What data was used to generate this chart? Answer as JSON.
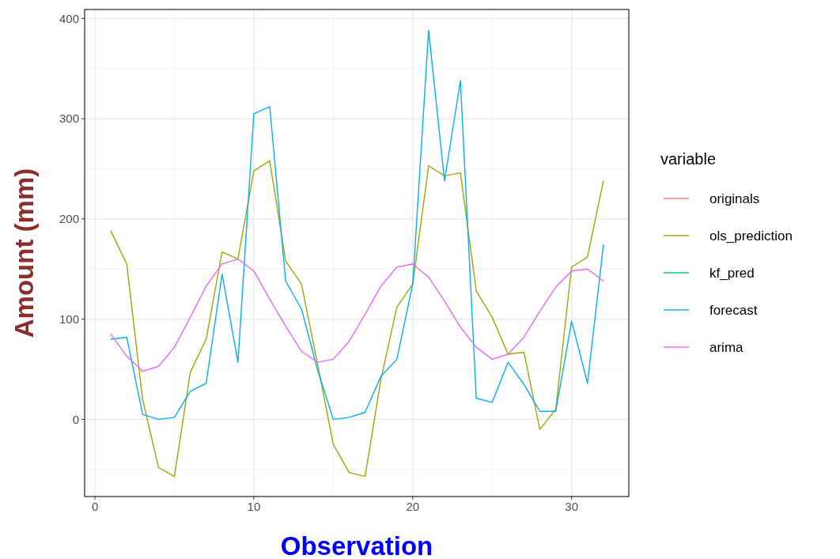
{
  "chart_data": {
    "type": "line",
    "xlabel": "Observation",
    "ylabel": "Amount (mm)",
    "legend_title": "variable",
    "legend": "right",
    "grid": true,
    "x": [
      1,
      2,
      3,
      4,
      5,
      6,
      7,
      8,
      9,
      10,
      11,
      12,
      13,
      14,
      15,
      16,
      17,
      18,
      19,
      20,
      21,
      22,
      23,
      24,
      25,
      26,
      27,
      28,
      29,
      30,
      31,
      32
    ],
    "xlim": [
      -0.65,
      33.6
    ],
    "xticks": [
      0,
      10,
      20,
      30
    ],
    "ylim": [
      -77,
      409
    ],
    "yticks": [
      0,
      100,
      200,
      300,
      400
    ],
    "series": [
      {
        "name": "originals",
        "color": "#f8766d",
        "values": [
          null,
          null,
          null,
          null,
          null,
          null,
          null,
          null,
          null,
          null,
          null,
          null,
          null,
          null,
          null,
          null,
          null,
          null,
          null,
          null,
          null,
          null,
          null,
          null,
          null,
          null,
          null,
          null,
          null,
          null,
          null,
          null
        ]
      },
      {
        "name": "ols_prediction",
        "color": "#a3a500",
        "values": [
          188,
          155,
          20,
          -48,
          -57,
          47,
          80,
          167,
          160,
          248,
          258,
          158,
          135,
          56,
          -25,
          -53,
          -57,
          40,
          112,
          135,
          253,
          243,
          246,
          128,
          102,
          65,
          67,
          -10,
          10,
          152,
          162,
          238
        ]
      },
      {
        "name": "kf_pred",
        "color": "#00bf7d",
        "values": [
          null,
          null,
          null,
          null,
          null,
          null,
          null,
          null,
          null,
          null,
          null,
          null,
          null,
          null,
          null,
          null,
          null,
          null,
          null,
          null,
          null,
          null,
          null,
          null,
          null,
          null,
          null,
          null,
          null,
          null,
          null,
          null
        ]
      },
      {
        "name": "forecast",
        "color": "#00b0f6",
        "values": [
          80,
          82,
          5,
          0,
          2,
          28,
          36,
          145,
          57,
          305,
          312,
          138,
          110,
          50,
          0,
          2,
          7,
          43,
          60,
          135,
          388,
          238,
          338,
          21,
          17,
          57,
          35,
          8,
          8,
          98,
          36,
          174
        ]
      },
      {
        "name": "arima",
        "color": "#e76bf3",
        "values": [
          85,
          63,
          48,
          53,
          72,
          102,
          133,
          155,
          160,
          148,
          120,
          93,
          68,
          57,
          60,
          78,
          105,
          133,
          152,
          155,
          142,
          118,
          92,
          72,
          60,
          65,
          82,
          108,
          132,
          148,
          150,
          138
        ]
      }
    ]
  }
}
